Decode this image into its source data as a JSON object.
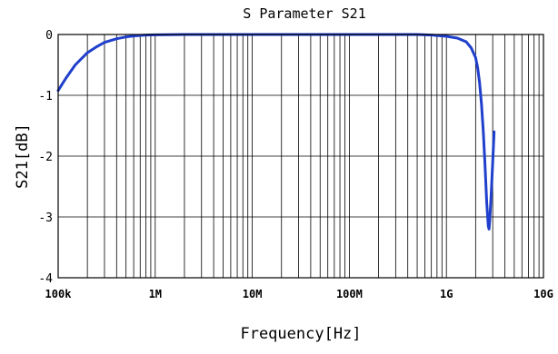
{
  "chart_data": {
    "type": "line",
    "title": "S Parameter S21",
    "xlabel": "Frequency[Hz]",
    "ylabel": "S21[dB]",
    "x_scale": "log",
    "xlim": [
      100000,
      10000000000
    ],
    "ylim": [
      -4,
      0
    ],
    "grid": true,
    "x_ticks": [
      {
        "value": 100000,
        "label": "100k"
      },
      {
        "value": 1000000,
        "label": "1M"
      },
      {
        "value": 10000000,
        "label": "10M"
      },
      {
        "value": 100000000,
        "label": "100M"
      },
      {
        "value": 1000000000,
        "label": "1G"
      },
      {
        "value": 10000000000,
        "label": "10G"
      }
    ],
    "y_ticks": [
      {
        "value": 0,
        "label": "0"
      },
      {
        "value": -1,
        "label": "-1"
      },
      {
        "value": -2,
        "label": "-2"
      },
      {
        "value": -3,
        "label": "-3"
      },
      {
        "value": -4,
        "label": "-4"
      }
    ],
    "series": [
      {
        "color": "#1f3fcc",
        "x": [
          100000,
          120000,
          150000,
          200000,
          250000,
          300000,
          400000,
          500000,
          600000,
          800000,
          1000000,
          2000000,
          10000000,
          100000000,
          500000000,
          700000000,
          1000000000,
          1300000000,
          1600000000,
          1800000000,
          2000000000,
          2100000000,
          2200000000,
          2300000000,
          2400000000,
          2500000000,
          2600000000,
          2700000000,
          2750000000,
          2800000000,
          2900000000,
          3000000000,
          3100000000
        ],
        "y": [
          -0.92,
          -0.72,
          -0.5,
          -0.3,
          -0.2,
          -0.13,
          -0.07,
          -0.04,
          -0.025,
          -0.01,
          -0.005,
          0.0,
          0.0,
          0.0,
          0.0,
          -0.01,
          -0.03,
          -0.06,
          -0.12,
          -0.22,
          -0.38,
          -0.55,
          -0.8,
          -1.15,
          -1.6,
          -2.15,
          -2.75,
          -3.15,
          -3.2,
          -3.05,
          -2.6,
          -2.1,
          -1.6
        ]
      }
    ]
  }
}
